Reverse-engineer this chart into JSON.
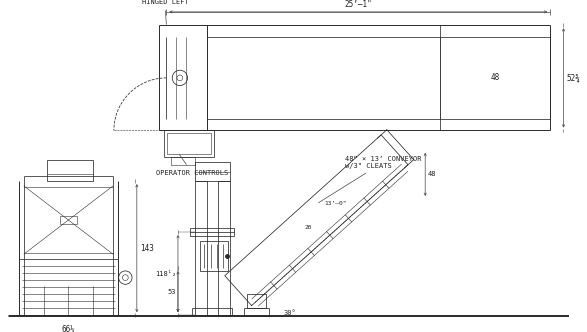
{
  "bg_color": "#ffffff",
  "lc": "#2a2a2a",
  "dc": "#444444",
  "tc": "#222222",
  "labels": {
    "hinged_left": "HINGED LEFT",
    "operator_controls": "OPERATOR CONTROLS",
    "25ft": "25’–1\"",
    "48_top": "48",
    "52_34": "52¾",
    "143": "143",
    "66_14": "66¼",
    "118_12": "118¹₂",
    "53": "53",
    "conveyor_title": "48” × 13’ CONVEYOR",
    "cleats": "w/3\" CLEATS",
    "20": "20",
    "13ft": "13’–0\"",
    "30deg": "30°",
    "48_conv": "48"
  }
}
